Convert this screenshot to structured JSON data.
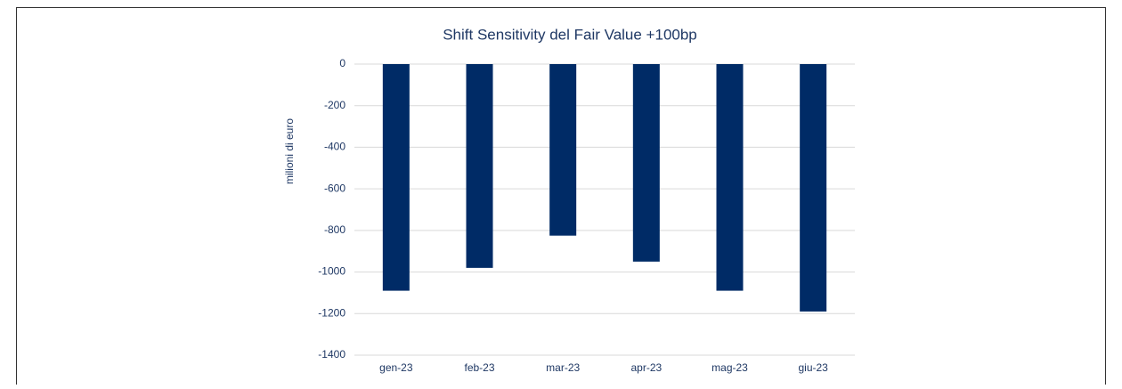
{
  "chart_data": {
    "type": "bar",
    "title": "Shift Sensitivity del Fair Value +100bp",
    "y_label": "milioni di euro",
    "categories": [
      "gen-23",
      "feb-23",
      "mar-23",
      "apr-23",
      "mag-23",
      "giu-23"
    ],
    "values": [
      -1090,
      -980,
      -825,
      -950,
      -1090,
      -1190
    ],
    "color": "#002b66",
    "ylim": [
      -1400,
      0
    ],
    "yticks": [
      0,
      -200,
      -400,
      -600,
      -800,
      -1000,
      -1200,
      -1400
    ],
    "grid": true
  }
}
